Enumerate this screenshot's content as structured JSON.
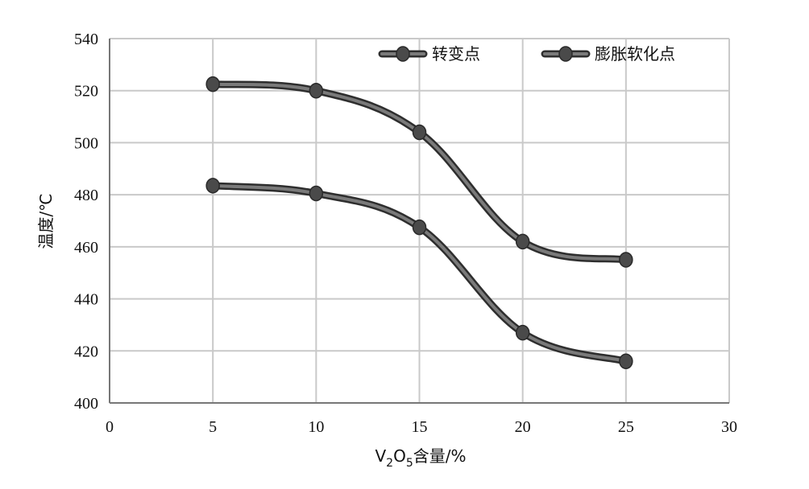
{
  "chart_data": {
    "type": "line",
    "title": "",
    "xlabel": "V2O5含量/%",
    "xlabel_parts": {
      "base": "V",
      "sub1": "2",
      "mid": "O",
      "sub2": "5",
      "rest": "含量/%"
    },
    "ylabel": "温度/℃",
    "xlim": [
      0,
      30
    ],
    "ylim": [
      400,
      540
    ],
    "xticks": [
      0,
      5,
      10,
      15,
      20,
      25,
      30
    ],
    "yticks": [
      400,
      420,
      440,
      460,
      480,
      500,
      520,
      540
    ],
    "grid": true,
    "smooth": true,
    "legend_position": "top-right",
    "series": [
      {
        "name": "转变点",
        "color": "#4a4a4a",
        "x": [
          5,
          10,
          15,
          20,
          25
        ],
        "y": [
          483.5,
          480.5,
          467.5,
          427,
          416
        ]
      },
      {
        "name": "膨胀软化点",
        "color": "#4a4a4a",
        "x": [
          5,
          10,
          15,
          20,
          25
        ],
        "y": [
          522.5,
          520,
          504,
          462,
          455
        ]
      }
    ]
  }
}
